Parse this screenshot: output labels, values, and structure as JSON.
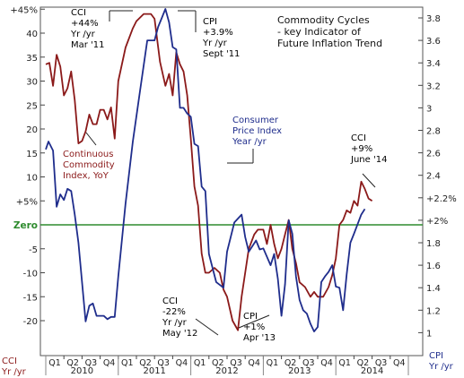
{
  "chart_data": {
    "type": "line",
    "title": [
      "Commodity Cycles",
      "- key Indicator of",
      "Future Inflation Trend"
    ],
    "left_axis": {
      "label": [
        "CCI",
        "Yr /yr"
      ],
      "range": [
        -25,
        45
      ],
      "ticks": [
        {
          "v": 45,
          "label": "+45%"
        },
        {
          "v": 40,
          "label": "40"
        },
        {
          "v": 35,
          "label": "35"
        },
        {
          "v": 30,
          "label": "30"
        },
        {
          "v": 25,
          "label": "25"
        },
        {
          "v": 20,
          "label": "20"
        },
        {
          "v": 15,
          "label": "15"
        },
        {
          "v": 10,
          "label": "10"
        },
        {
          "v": 5,
          "label": "+5%"
        },
        {
          "v": 0,
          "label": "Zero"
        },
        {
          "v": -5,
          "label": "-5"
        },
        {
          "v": -10,
          "label": "-10"
        },
        {
          "v": -15,
          "label": "-15"
        },
        {
          "v": -20,
          "label": "-20"
        }
      ]
    },
    "right_axis": {
      "label": [
        "CPI",
        "Yr /yr"
      ],
      "range": [
        0.9,
        3.9
      ],
      "ticks": [
        {
          "v": 3.8,
          "label": "3.8"
        },
        {
          "v": 3.6,
          "label": "3.6"
        },
        {
          "v": 3.4,
          "label": "3.4"
        },
        {
          "v": 3.2,
          "label": "3.2"
        },
        {
          "v": 3.0,
          "label": "3"
        },
        {
          "v": 2.8,
          "label": "2.8"
        },
        {
          "v": 2.6,
          "label": "2.6"
        },
        {
          "v": 2.4,
          "label": "2.4"
        },
        {
          "v": 2.2,
          "label": "2.2%"
        },
        {
          "v": 2.0,
          "label": "2%"
        },
        {
          "v": 1.8,
          "label": "1.8"
        },
        {
          "v": 1.6,
          "label": "1.6"
        },
        {
          "v": 1.4,
          "label": "1.4"
        },
        {
          "v": 1.2,
          "label": "1.2"
        },
        {
          "v": 1.0,
          "label": "1"
        }
      ]
    },
    "x_axis": {
      "range": [
        0,
        19
      ],
      "quarters": [
        "Q1",
        "Q2",
        "Q3",
        "Q4",
        "Q1",
        "Q2",
        "Q3",
        "Q4",
        "Q1",
        "Q2",
        "Q3",
        "Q4",
        "Q1",
        "Q2",
        "Q3",
        "Q4",
        "Q1",
        "Q2",
        "Q3",
        "Q4"
      ],
      "years": [
        {
          "label": "2010",
          "center": 2
        },
        {
          "label": "2011",
          "center": 6
        },
        {
          "label": "2012",
          "center": 10
        },
        {
          "label": "2013",
          "center": 14
        },
        {
          "label": "2014",
          "center": 18
        }
      ]
    },
    "series": [
      {
        "name": "Continuous Commodity Index, YoY",
        "color": "#8b1a1a",
        "axis": "left",
        "points": [
          [
            0,
            33.5
          ],
          [
            0.2,
            33.8
          ],
          [
            0.4,
            29
          ],
          [
            0.6,
            35.5
          ],
          [
            0.8,
            33
          ],
          [
            1.0,
            27
          ],
          [
            1.2,
            28.5
          ],
          [
            1.4,
            32
          ],
          [
            1.6,
            26
          ],
          [
            1.8,
            17
          ],
          [
            2.0,
            17.5
          ],
          [
            2.2,
            19.5
          ],
          [
            2.4,
            23
          ],
          [
            2.6,
            21
          ],
          [
            2.8,
            21
          ],
          [
            3.0,
            24
          ],
          [
            3.2,
            24
          ],
          [
            3.4,
            22
          ],
          [
            3.6,
            24.5
          ],
          [
            3.8,
            18
          ],
          [
            4.0,
            30
          ],
          [
            4.4,
            37
          ],
          [
            4.8,
            41
          ],
          [
            5.0,
            42.5
          ],
          [
            5.4,
            44
          ],
          [
            5.8,
            44
          ],
          [
            6.0,
            43
          ],
          [
            6.3,
            34
          ],
          [
            6.6,
            29
          ],
          [
            6.8,
            31.5
          ],
          [
            7.0,
            27
          ],
          [
            7.2,
            36
          ],
          [
            7.4,
            33.5
          ],
          [
            7.6,
            32
          ],
          [
            7.8,
            27
          ],
          [
            8.0,
            18
          ],
          [
            8.2,
            8
          ],
          [
            8.4,
            4
          ],
          [
            8.6,
            -6
          ],
          [
            8.8,
            -10
          ],
          [
            9.0,
            -10
          ],
          [
            9.3,
            -9
          ],
          [
            9.6,
            -10
          ],
          [
            9.8,
            -13.5
          ],
          [
            10.0,
            -15
          ],
          [
            10.3,
            -20
          ],
          [
            10.6,
            -22
          ],
          [
            10.8,
            -15
          ],
          [
            11.0,
            -10
          ],
          [
            11.2,
            -5
          ],
          [
            11.5,
            -2
          ],
          [
            11.7,
            -1
          ],
          [
            12.0,
            -1
          ],
          [
            12.2,
            -4
          ],
          [
            12.4,
            0
          ],
          [
            12.6,
            -4
          ],
          [
            12.8,
            -7
          ],
          [
            13.0,
            -5
          ],
          [
            13.2,
            -2
          ],
          [
            13.4,
            1
          ],
          [
            13.6,
            -5
          ],
          [
            13.8,
            -8
          ],
          [
            14.0,
            -12
          ],
          [
            14.3,
            -13
          ],
          [
            14.6,
            -15
          ],
          [
            14.8,
            -14
          ],
          [
            15.0,
            -15
          ],
          [
            15.3,
            -15
          ],
          [
            15.6,
            -13
          ],
          [
            15.8,
            -10.5
          ],
          [
            16.0,
            -7
          ],
          [
            16.2,
            0
          ],
          [
            16.4,
            1
          ],
          [
            16.6,
            3
          ],
          [
            16.8,
            2.5
          ],
          [
            17.0,
            5
          ],
          [
            17.2,
            4
          ],
          [
            17.4,
            9
          ],
          [
            17.6,
            7.5
          ],
          [
            17.8,
            5.5
          ],
          [
            18.0,
            5
          ]
        ]
      },
      {
        "name": "Consumer Price Index Year /yr",
        "color": "#1f2d8c",
        "axis": "right",
        "points": [
          [
            0,
            2.63
          ],
          [
            0.15,
            2.7
          ],
          [
            0.4,
            2.62
          ],
          [
            0.6,
            2.12
          ],
          [
            0.8,
            2.23
          ],
          [
            1.0,
            2.18
          ],
          [
            1.2,
            2.28
          ],
          [
            1.4,
            2.26
          ],
          [
            1.6,
            2.05
          ],
          [
            1.8,
            1.8
          ],
          [
            2.0,
            1.45
          ],
          [
            2.2,
            1.1
          ],
          [
            2.4,
            1.24
          ],
          [
            2.6,
            1.26
          ],
          [
            2.8,
            1.15
          ],
          [
            3.0,
            1.15
          ],
          [
            3.2,
            1.15
          ],
          [
            3.4,
            1.12
          ],
          [
            3.6,
            1.14
          ],
          [
            3.8,
            1.14
          ],
          [
            4.0,
            1.5
          ],
          [
            4.4,
            2.15
          ],
          [
            4.8,
            2.7
          ],
          [
            5.2,
            3.15
          ],
          [
            5.6,
            3.6
          ],
          [
            6.0,
            3.6
          ],
          [
            6.2,
            3.72
          ],
          [
            6.4,
            3.8
          ],
          [
            6.6,
            3.88
          ],
          [
            6.8,
            3.76
          ],
          [
            7.0,
            3.54
          ],
          [
            7.2,
            3.52
          ],
          [
            7.4,
            3.0
          ],
          [
            7.6,
            3.0
          ],
          [
            7.8,
            2.95
          ],
          [
            8.0,
            2.92
          ],
          [
            8.2,
            2.68
          ],
          [
            8.4,
            2.66
          ],
          [
            8.6,
            2.3
          ],
          [
            8.8,
            2.26
          ],
          [
            9.0,
            1.7
          ],
          [
            9.4,
            1.45
          ],
          [
            9.8,
            1.4
          ],
          [
            10.0,
            1.72
          ],
          [
            10.4,
            1.98
          ],
          [
            10.8,
            2.05
          ],
          [
            11.0,
            1.85
          ],
          [
            11.2,
            1.72
          ],
          [
            11.6,
            1.82
          ],
          [
            11.8,
            1.74
          ],
          [
            12.0,
            1.75
          ],
          [
            12.4,
            1.6
          ],
          [
            12.6,
            1.7
          ],
          [
            12.8,
            1.48
          ],
          [
            13.0,
            1.15
          ],
          [
            13.2,
            1.43
          ],
          [
            13.4,
            2.0
          ],
          [
            13.6,
            1.88
          ],
          [
            13.8,
            1.5
          ],
          [
            14.0,
            1.29
          ],
          [
            14.2,
            1.2
          ],
          [
            14.4,
            1.17
          ],
          [
            14.6,
            1.08
          ],
          [
            14.8,
            1.01
          ],
          [
            15.0,
            1.05
          ],
          [
            15.2,
            1.45
          ],
          [
            15.4,
            1.5
          ],
          [
            15.6,
            1.54
          ],
          [
            15.8,
            1.6
          ],
          [
            16.0,
            1.41
          ],
          [
            16.2,
            1.4
          ],
          [
            16.4,
            1.2
          ],
          [
            16.6,
            1.52
          ],
          [
            16.8,
            1.8
          ],
          [
            17.0,
            1.88
          ],
          [
            17.4,
            2.05
          ],
          [
            17.6,
            2.1
          ]
        ]
      }
    ],
    "annotations": [
      {
        "lines": [
          "CCI",
          "+44%",
          "Yr /yr",
          "Mar '11"
        ],
        "color": "#000000"
      },
      {
        "lines": [
          "CPI",
          "+3.9%",
          "Yr /yr",
          "Sept '11"
        ],
        "color": "#000000"
      },
      {
        "lines": [
          "Consumer",
          "Price Index",
          "Year /yr"
        ],
        "color": "#1f2d8c"
      },
      {
        "lines": [
          "Continuous",
          "Commodity",
          "Index, YoY"
        ],
        "color": "#8b1a1a"
      },
      {
        "lines": [
          "CCI",
          "+9%",
          "June '14"
        ],
        "color": "#000000"
      },
      {
        "lines": [
          "CCI",
          "-22%",
          "Yr /yr",
          "May '12"
        ],
        "color": "#000000"
      },
      {
        "lines": [
          "CPI",
          "+1%",
          "Apr '13"
        ],
        "color": "#000000"
      }
    ],
    "reference_line": {
      "value": 0,
      "label": "Zero",
      "color": "#2e8b2e"
    },
    "grid": false
  }
}
